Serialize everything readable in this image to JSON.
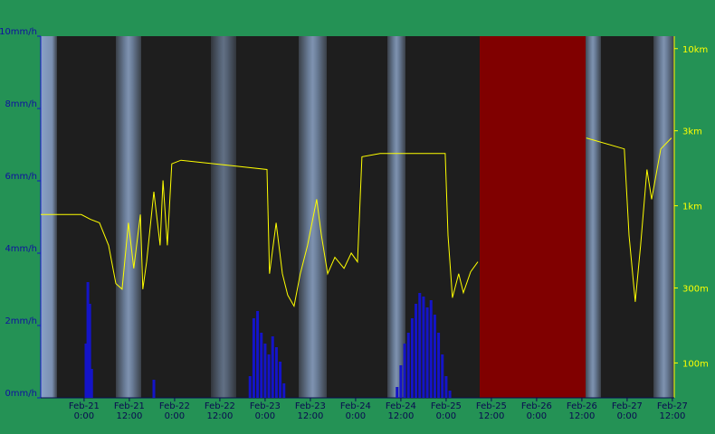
{
  "chart_data": {
    "type": "combo",
    "xlim": [
      "Feb-20 12:30",
      "Feb-27 12:30"
    ],
    "xticks": [
      {
        "value": "Feb-21 00:00",
        "label": "Feb-21\n0:00"
      },
      {
        "value": "Feb-21 12:00",
        "label": "Feb-21\n12:00"
      },
      {
        "value": "Feb-22 00:00",
        "label": "Feb-22\n0:00"
      },
      {
        "value": "Feb-22 12:00",
        "label": "Feb-22\n12:00"
      },
      {
        "value": "Feb-23 00:00",
        "label": "Feb-23\n0:00"
      },
      {
        "value": "Feb-23 12:00",
        "label": "Feb-23\n12:00"
      },
      {
        "value": "Feb-24 00:00",
        "label": "Feb-24\n0:00"
      },
      {
        "value": "Feb-24 12:00",
        "label": "Feb-24\n12:00"
      },
      {
        "value": "Feb-25 00:00",
        "label": "Feb-25\n0:00"
      },
      {
        "value": "Feb-25 12:00",
        "label": "Feb-25\n12:00"
      },
      {
        "value": "Feb-26 00:00",
        "label": "Feb-26\n0:00"
      },
      {
        "value": "Feb-26 12:00",
        "label": "Feb-26\n12:00"
      },
      {
        "value": "Feb-27 00:00",
        "label": "Feb-27\n0:00"
      },
      {
        "value": "Feb-27 12:00",
        "label": "Feb-27\n12:00"
      }
    ],
    "ylim": [
      0,
      10
    ],
    "yticks": [
      {
        "value": 0,
        "label": "0mm/h"
      },
      {
        "value": 2,
        "label": "2mm/h"
      },
      {
        "value": 4,
        "label": "4mm/h"
      },
      {
        "value": 6,
        "label": "6mm/h"
      },
      {
        "value": 8,
        "label": "8mm/h"
      },
      {
        "value": 10,
        "label": "10mm/h"
      }
    ],
    "y2lim": [
      60,
      12000
    ],
    "y2log": true,
    "y2ticks": [
      {
        "value": 10000,
        "label": "10km"
      },
      {
        "value": 3000,
        "label": "3km"
      },
      {
        "value": 1000,
        "label": "1km"
      },
      {
        "value": 300,
        "label": "300m"
      },
      {
        "value": 100,
        "label": "100m"
      }
    ],
    "series": [
      {
        "type": "bar",
        "color": "#1414c8",
        "x": [
          "Feb-21 00:30",
          "Feb-21 01:00",
          "Feb-21 01:30",
          "Feb-21 02:00",
          "Feb-21 18:30",
          "Feb-22 20:00",
          "Feb-22 21:00",
          "Feb-22 22:00",
          "Feb-22 23:00",
          "Feb-23 00:00",
          "Feb-23 01:00",
          "Feb-23 02:00",
          "Feb-23 03:00",
          "Feb-23 04:00",
          "Feb-23 05:00",
          "Feb-24 11:00",
          "Feb-24 12:00",
          "Feb-24 13:00",
          "Feb-24 14:00",
          "Feb-24 15:00",
          "Feb-24 16:00",
          "Feb-24 17:00",
          "Feb-24 18:00",
          "Feb-24 19:00",
          "Feb-24 20:00",
          "Feb-24 21:00",
          "Feb-24 22:00",
          "Feb-24 23:00",
          "Feb-25 00:00",
          "Feb-25 01:00"
        ],
        "values": [
          1.5,
          3.2,
          2.6,
          0.8,
          0.5,
          0.6,
          2.2,
          2.4,
          1.8,
          1.5,
          1.2,
          1.7,
          1.4,
          1.0,
          0.4,
          0.3,
          0.9,
          1.5,
          1.8,
          2.2,
          2.6,
          2.9,
          2.8,
          2.5,
          2.7,
          2.3,
          1.8,
          1.2,
          0.6,
          0.2
        ]
      },
      {
        "type": "line",
        "axis": "y2",
        "color": "#ffff00",
        "x": [
          "Feb-20 12:30",
          "Feb-20 23:15",
          "Feb-21 01:40",
          "Feb-21 04:05",
          "Feb-21 06:30",
          "Feb-21 08:25",
          "Feb-21 10:05",
          "Feb-21 11:45",
          "Feb-21 13:10",
          "Feb-21 14:55",
          "Feb-21 15:35",
          "Feb-21 16:35",
          "Feb-21 18:30",
          "Feb-21 20:10",
          "Feb-21 20:55",
          "Feb-21 22:05",
          "Feb-21 23:15",
          "Feb-22 01:40",
          "Feb-23 00:30",
          "Feb-23 01:10",
          "Feb-23 02:55",
          "Feb-23 04:35",
          "Feb-23 06:00",
          "Feb-23 07:40",
          "Feb-23 09:20",
          "Feb-23 11:15",
          "Feb-23 13:40",
          "Feb-23 14:55",
          "Feb-23 16:35",
          "Feb-23 18:30",
          "Feb-23 20:55",
          "Feb-23 22:50",
          "Feb-24 00:30",
          "Feb-24 01:40",
          "Feb-24 06:30",
          "Feb-24 23:45",
          "Feb-25 00:30",
          "Feb-25 01:40",
          "Feb-25 03:20",
          "Feb-25 04:35",
          "Feb-25 06:30",
          "Feb-25 08:25",
          "Feb-25 18:00",
          "Feb-26 13:10",
          "Feb-26 23:15",
          "Feb-27 00:30",
          "Feb-27 02:10",
          "Feb-27 03:35",
          "Feb-27 05:15",
          "Feb-27 06:30",
          "Feb-27 08:55",
          "Feb-27 11:45"
        ],
        "values": [
          880,
          880,
          820,
          780,
          560,
          320,
          295,
          780,
          400,
          880,
          295,
          440,
          1230,
          560,
          1450,
          560,
          1850,
          1950,
          1700,
          370,
          780,
          370,
          270,
          230,
          370,
          560,
          1100,
          650,
          370,
          470,
          400,
          500,
          440,
          2050,
          2150,
          2150,
          650,
          260,
          370,
          280,
          380,
          440,
          null,
          2700,
          2300,
          650,
          245,
          560,
          1700,
          1100,
          2300,
          2700
        ]
      }
    ]
  }
}
